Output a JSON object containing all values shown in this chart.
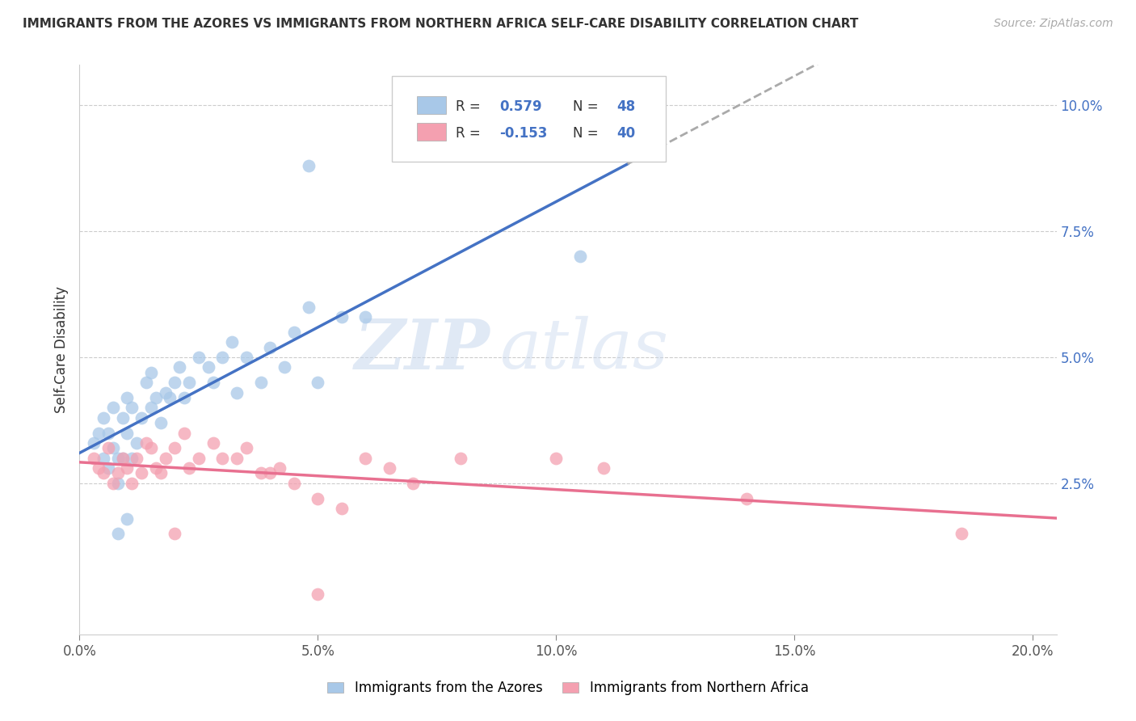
{
  "title": "IMMIGRANTS FROM THE AZORES VS IMMIGRANTS FROM NORTHERN AFRICA SELF-CARE DISABILITY CORRELATION CHART",
  "source": "Source: ZipAtlas.com",
  "ylabel": "Self-Care Disability",
  "xlim": [
    0.0,
    0.205
  ],
  "ylim": [
    -0.005,
    0.108
  ],
  "yticks": [
    0.025,
    0.05,
    0.075,
    0.1
  ],
  "ytick_labels": [
    "2.5%",
    "5.0%",
    "7.5%",
    "10.0%"
  ],
  "xticks": [
    0.0,
    0.05,
    0.1,
    0.15,
    0.2
  ],
  "xtick_labels": [
    "0.0%",
    "5.0%",
    "10.0%",
    "15.0%",
    "20.0%"
  ],
  "watermark_zip": "ZIP",
  "watermark_atlas": "atlas",
  "legend1_R": "0.579",
  "legend1_N": "48",
  "legend2_R": "-0.153",
  "legend2_N": "40",
  "blue_color": "#a8c8e8",
  "pink_color": "#f4a0b0",
  "blue_line_color": "#4472c4",
  "pink_line_color": "#e87090",
  "blue_line_dashed_color": "#b0c8e0",
  "blue_scatter": [
    [
      0.003,
      0.033
    ],
    [
      0.004,
      0.035
    ],
    [
      0.005,
      0.03
    ],
    [
      0.005,
      0.038
    ],
    [
      0.006,
      0.028
    ],
    [
      0.006,
      0.035
    ],
    [
      0.007,
      0.032
    ],
    [
      0.007,
      0.04
    ],
    [
      0.008,
      0.03
    ],
    [
      0.008,
      0.025
    ],
    [
      0.009,
      0.038
    ],
    [
      0.009,
      0.03
    ],
    [
      0.01,
      0.035
    ],
    [
      0.01,
      0.042
    ],
    [
      0.011,
      0.03
    ],
    [
      0.011,
      0.04
    ],
    [
      0.012,
      0.033
    ],
    [
      0.013,
      0.038
    ],
    [
      0.014,
      0.045
    ],
    [
      0.015,
      0.04
    ],
    [
      0.015,
      0.047
    ],
    [
      0.016,
      0.042
    ],
    [
      0.017,
      0.037
    ],
    [
      0.018,
      0.043
    ],
    [
      0.019,
      0.042
    ],
    [
      0.02,
      0.045
    ],
    [
      0.021,
      0.048
    ],
    [
      0.022,
      0.042
    ],
    [
      0.023,
      0.045
    ],
    [
      0.025,
      0.05
    ],
    [
      0.027,
      0.048
    ],
    [
      0.028,
      0.045
    ],
    [
      0.03,
      0.05
    ],
    [
      0.032,
      0.053
    ],
    [
      0.033,
      0.043
    ],
    [
      0.035,
      0.05
    ],
    [
      0.038,
      0.045
    ],
    [
      0.04,
      0.052
    ],
    [
      0.043,
      0.048
    ],
    [
      0.045,
      0.055
    ],
    [
      0.048,
      0.06
    ],
    [
      0.05,
      0.045
    ],
    [
      0.055,
      0.058
    ],
    [
      0.06,
      0.058
    ],
    [
      0.048,
      0.088
    ],
    [
      0.01,
      0.018
    ],
    [
      0.008,
      0.015
    ],
    [
      0.105,
      0.07
    ]
  ],
  "pink_scatter": [
    [
      0.003,
      0.03
    ],
    [
      0.004,
      0.028
    ],
    [
      0.005,
      0.027
    ],
    [
      0.006,
      0.032
    ],
    [
      0.007,
      0.025
    ],
    [
      0.008,
      0.027
    ],
    [
      0.009,
      0.03
    ],
    [
      0.01,
      0.028
    ],
    [
      0.011,
      0.025
    ],
    [
      0.012,
      0.03
    ],
    [
      0.013,
      0.027
    ],
    [
      0.014,
      0.033
    ],
    [
      0.015,
      0.032
    ],
    [
      0.016,
      0.028
    ],
    [
      0.017,
      0.027
    ],
    [
      0.018,
      0.03
    ],
    [
      0.02,
      0.032
    ],
    [
      0.022,
      0.035
    ],
    [
      0.023,
      0.028
    ],
    [
      0.025,
      0.03
    ],
    [
      0.028,
      0.033
    ],
    [
      0.03,
      0.03
    ],
    [
      0.033,
      0.03
    ],
    [
      0.035,
      0.032
    ],
    [
      0.038,
      0.027
    ],
    [
      0.04,
      0.027
    ],
    [
      0.042,
      0.028
    ],
    [
      0.045,
      0.025
    ],
    [
      0.05,
      0.022
    ],
    [
      0.055,
      0.02
    ],
    [
      0.06,
      0.03
    ],
    [
      0.065,
      0.028
    ],
    [
      0.07,
      0.025
    ],
    [
      0.08,
      0.03
    ],
    [
      0.1,
      0.03
    ],
    [
      0.11,
      0.028
    ],
    [
      0.05,
      0.003
    ],
    [
      0.02,
      0.015
    ],
    [
      0.14,
      0.022
    ],
    [
      0.185,
      0.015
    ]
  ],
  "blue_line_solid_end": 0.115,
  "blue_line_start_y": 0.022,
  "blue_line_slope": 0.5,
  "pink_line_start_y": 0.03,
  "pink_line_slope": -0.04,
  "legend_label1": "Immigrants from the Azores",
  "legend_label2": "Immigrants from Northern Africa"
}
